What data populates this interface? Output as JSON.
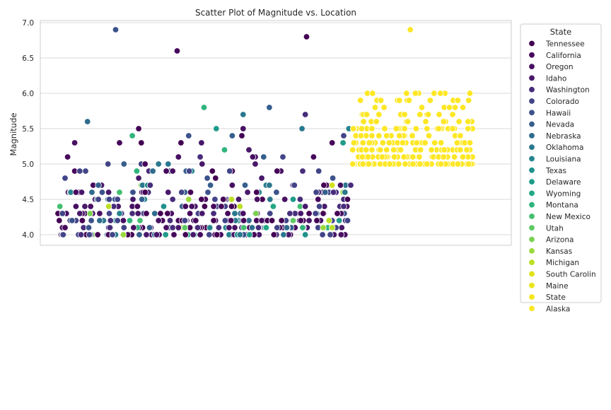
{
  "chart_data": {
    "type": "scatter",
    "title": "Scatter Plot of Magnitude vs. Location",
    "xlabel": "",
    "ylabel": "Magnitude",
    "ylim": [
      3.85,
      7.03
    ],
    "yticks": [
      4.0,
      4.5,
      5.0,
      5.5,
      6.0,
      6.5,
      7.0
    ],
    "ytick_labels": [
      "4.0",
      "4.5",
      "5.0",
      "5.5",
      "6.0",
      "6.5",
      "7.0"
    ],
    "x_axis_categorical_hidden": true,
    "grid": "horizontal",
    "legend": {
      "title": "State",
      "placement": "right"
    },
    "series": [
      {
        "name": "Tennessee",
        "color": "#440154"
      },
      {
        "name": "California",
        "color": "#46085c"
      },
      {
        "name": "Oregon",
        "color": "#471063"
      },
      {
        "name": "Idaho",
        "color": "#48186a"
      },
      {
        "name": "Washington",
        "color": "#472d7b"
      },
      {
        "name": "Colorado",
        "color": "#414487"
      },
      {
        "name": "Hawaii",
        "color": "#3b528b"
      },
      {
        "name": "Nevada",
        "color": "#355f8d"
      },
      {
        "name": "Nebraska",
        "color": "#2f6c8e"
      },
      {
        "name": "Oklahoma",
        "color": "#2a788e"
      },
      {
        "name": "Louisiana",
        "color": "#25848e"
      },
      {
        "name": "Texas",
        "color": "#21918c"
      },
      {
        "name": "Delaware",
        "color": "#1e9c89"
      },
      {
        "name": "Wyoming",
        "color": "#22a884"
      },
      {
        "name": "Montana",
        "color": "#2fb47c"
      },
      {
        "name": "New Mexico",
        "color": "#44bf70"
      },
      {
        "name": "Utah",
        "color": "#5ec962"
      },
      {
        "name": "Arizona",
        "color": "#7ad151"
      },
      {
        "name": "Kansas",
        "color": "#9bd93c"
      },
      {
        "name": "Michigan",
        "color": "#bddf26"
      },
      {
        "name": "South Carolin",
        "color": "#dfe318"
      },
      {
        "name": "Maine",
        "color": "#eae51a"
      },
      {
        "name": "State",
        "color": "#f4e61e"
      },
      {
        "name": "Alaska",
        "color": "#fde725"
      }
    ],
    "notable_points": [
      {
        "x_index": 90,
        "y": 6.9,
        "color": "#3b528b"
      },
      {
        "x_index": 186,
        "y": 6.6,
        "color": "#46085c"
      },
      {
        "x_index": 388,
        "y": 6.8,
        "color": "#440154"
      },
      {
        "x_index": 550,
        "y": 6.9,
        "color": "#fde725"
      }
    ],
    "point_groups": [
      {
        "color": "#440154",
        "x_range": [
          0,
          460
        ],
        "y_values": [
          4.0,
          4.1,
          4.2,
          4.3,
          4.4,
          4.5,
          4.6,
          4.7,
          4.9,
          5.0,
          5.1,
          5.2,
          5.3,
          5.4,
          5.5,
          5.6,
          5.7,
          5.8,
          5.9,
          6.0,
          6.2
        ]
      },
      {
        "color": "#3b528b",
        "x_range": [
          0,
          460
        ],
        "y_values": [
          4.0,
          4.1,
          4.2,
          4.3,
          4.4,
          4.5,
          4.6,
          4.7,
          4.9,
          5.2,
          5.5,
          5.6,
          5.7
        ]
      },
      {
        "color": "#21918c",
        "x_range": [
          0,
          460
        ],
        "y_values": [
          4.0,
          4.1,
          4.2,
          4.3,
          4.4,
          4.5,
          4.6,
          4.7,
          4.8,
          5.0,
          5.1,
          5.3,
          5.8
        ]
      },
      {
        "color": "#5ec962",
        "x_range": [
          0,
          460
        ],
        "y_values": [
          4.0,
          4.1,
          4.2,
          4.3,
          4.4,
          4.7,
          4.9
        ]
      },
      {
        "color": "#fde725",
        "x_range": [
          460,
          650
        ],
        "y_values": [
          5.0,
          5.1,
          5.2,
          5.3,
          5.4,
          5.5,
          5.6,
          5.7,
          5.8,
          5.9,
          6.0
        ]
      }
    ]
  }
}
